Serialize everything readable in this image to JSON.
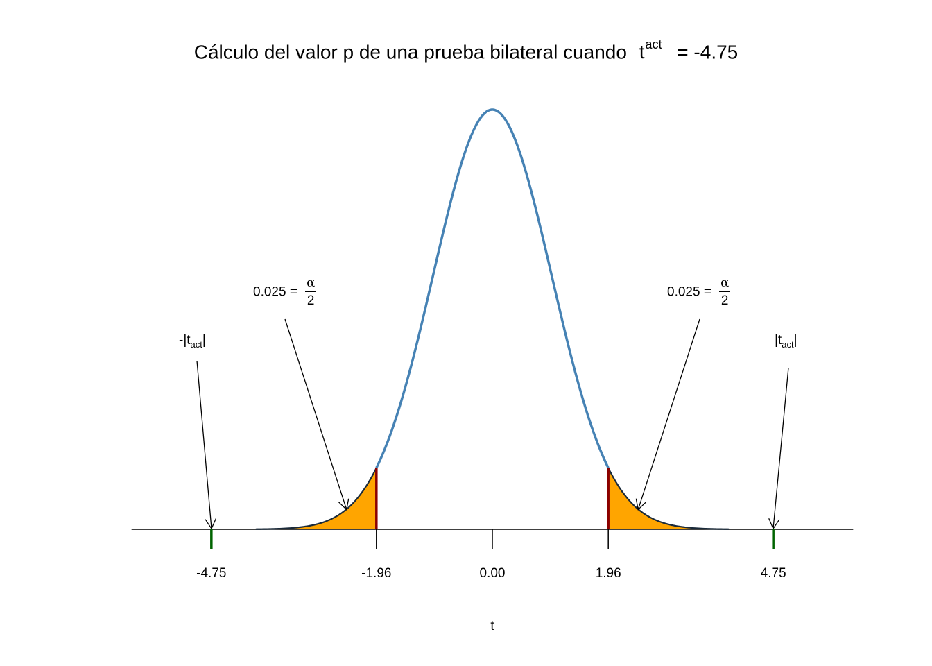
{
  "title": {
    "text_prefix": "Cálculo del valor p de una prueba bilateral cuando",
    "t_symbol": "t",
    "t_superscript": "act",
    "text_suffix": "= -4.75"
  },
  "annotations": {
    "left_alpha": {
      "value": "0.025 =",
      "numerator": "α",
      "denominator": "2"
    },
    "right_alpha": {
      "value": "0.025 =",
      "numerator": "α",
      "denominator": "2"
    },
    "left_tact": {
      "prefix": "-|t",
      "subscript": "act",
      "suffix": "|"
    },
    "right_tact": {
      "prefix": "|t",
      "subscript": "act",
      "suffix": "|"
    }
  },
  "chart_data": {
    "type": "area",
    "title": "Cálculo del valor p de una prueba bilateral cuando t^act = -4.75",
    "xlabel": "t",
    "ylabel": "",
    "xlim": [
      -6.1,
      6.1
    ],
    "curve": {
      "distribution": "standard normal density",
      "x_range": [
        -4.0,
        4.0
      ],
      "color": "#4682B4"
    },
    "rejection_regions": [
      {
        "from": -4.0,
        "to": -1.96,
        "color": "#FFA500",
        "label": "0.025 = α/2"
      },
      {
        "from": 1.96,
        "to": 4.0,
        "color": "#FFA500",
        "label": "0.025 = α/2"
      }
    ],
    "critical_values": [
      -1.96,
      1.96
    ],
    "critical_color": "#8B0000",
    "test_statistic": {
      "value": -4.75,
      "marks": [
        -4.75,
        4.75
      ],
      "color": "#006400"
    },
    "tick_labels": [
      "-4.75",
      "-1.96",
      "0.00",
      "1.96",
      "4.75"
    ],
    "tick_values": [
      -4.75,
      -1.96,
      0.0,
      1.96,
      4.75
    ],
    "grid": false,
    "legend": "none"
  }
}
